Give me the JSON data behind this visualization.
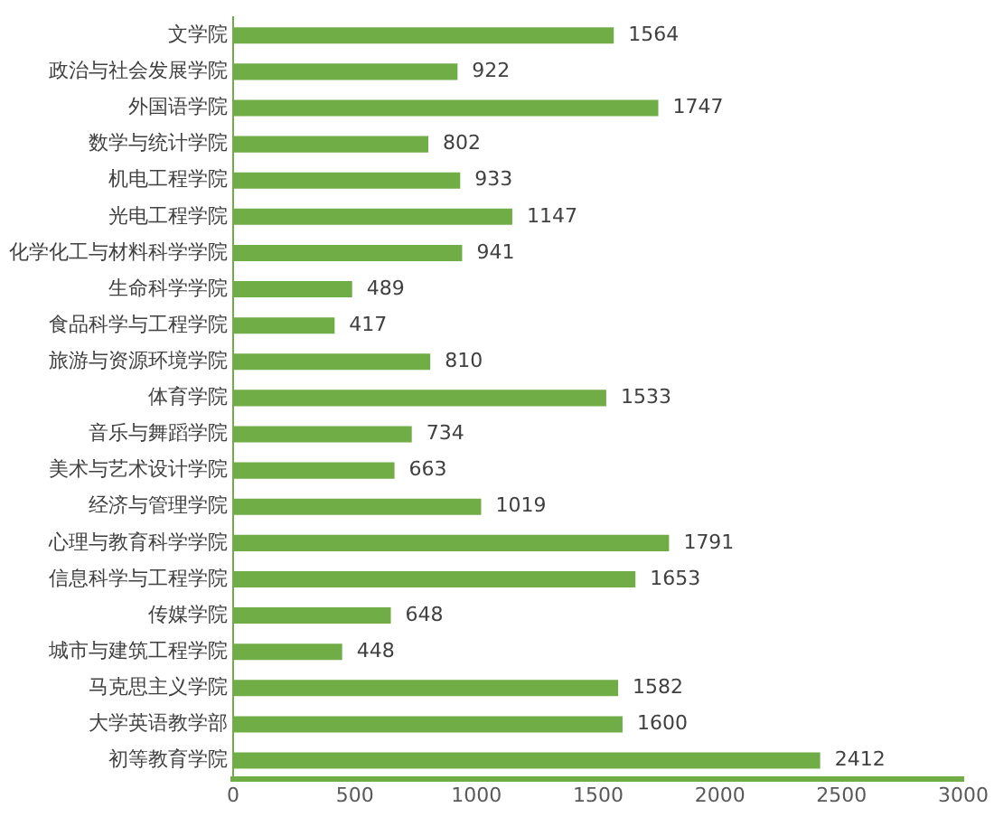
{
  "chart_data": {
    "type": "bar",
    "orientation": "horizontal",
    "categories": [
      "文学院",
      "政治与社会发展学院",
      "外国语学院",
      "数学与统计学院",
      "机电工程学院",
      "光电工程学院",
      "化学化工与材料科学学院",
      "生命科学学院",
      "食品科学与工程学院",
      "旅游与资源环境学院",
      "体育学院",
      "音乐与舞蹈学院",
      "美术与艺术设计学院",
      "经济与管理学院",
      "心理与教育科学学院",
      "信息科学与工程学院",
      "传媒学院",
      "城市与建筑工程学院",
      "马克思主义学院",
      "大学英语教学部",
      "初等教育学院"
    ],
    "values": [
      1564,
      922,
      1747,
      802,
      933,
      1147,
      941,
      489,
      417,
      810,
      1533,
      734,
      663,
      1019,
      1791,
      1653,
      648,
      448,
      1582,
      1600,
      2412
    ],
    "color": "#70ad47",
    "xlim": [
      0,
      3000
    ],
    "xticks": [
      0,
      500,
      1000,
      1500,
      2000,
      2500,
      3000
    ],
    "grid": false,
    "legend": false,
    "data_labels": true
  }
}
